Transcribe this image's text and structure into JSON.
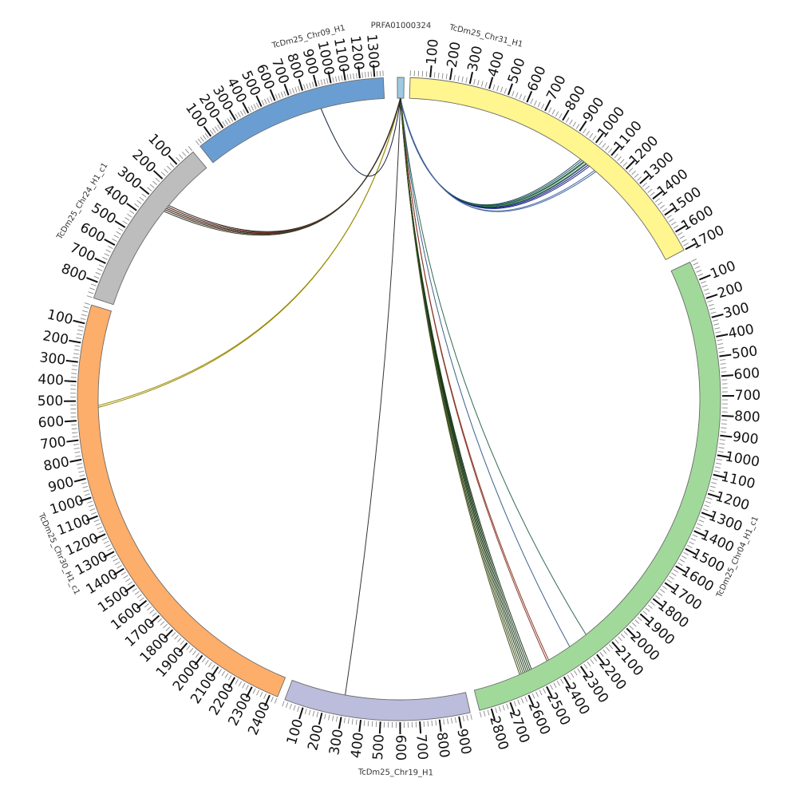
{
  "diagram": {
    "type": "circos",
    "chromosomes": [
      {
        "id": "scaffold",
        "label": "PRFA01000324",
        "length": 12,
        "color": "#9ecae1",
        "tick_step": 0,
        "show_ticks": false
      },
      {
        "id": "chr31",
        "label": "TcDm25_Chr31_H1",
        "length": 1700,
        "color": "#fff68f",
        "tick_step": 100
      },
      {
        "id": "chr04",
        "label": "TcDm25_Chr04_H1_c1",
        "length": 2860,
        "color": "#a1d99b",
        "tick_step": 100
      },
      {
        "id": "chr19",
        "label": "TcDm25_Chr19_H1",
        "length": 960,
        "color": "#bcbddc",
        "tick_step": 100
      },
      {
        "id": "chr30",
        "label": "TcDm25_Chr30_H1_c1",
        "length": 2440,
        "color": "#fdae6b",
        "tick_step": 100
      },
      {
        "id": "chr24",
        "label": "TcDm25_Chr24_H1_c1",
        "length": 880,
        "color": "#bdbdbd",
        "tick_step": 100
      },
      {
        "id": "chr09",
        "label": "TcDm25_Chr09_H1",
        "length": 1360,
        "color": "#6a9ed3",
        "tick_step": 100
      }
    ],
    "links": [
      {
        "from": "scaffold",
        "from_pos": 5,
        "to": "chr31",
        "to_pos": 1000,
        "color": "#1f4e5a",
        "count": 3
      },
      {
        "from": "scaffold",
        "from_pos": 5,
        "to": "chr31",
        "to_pos": 1020,
        "color": "#2e7d32",
        "count": 2
      },
      {
        "from": "scaffold",
        "from_pos": 5,
        "to": "chr31",
        "to_pos": 1040,
        "color": "#1a237e",
        "count": 3
      },
      {
        "from": "scaffold",
        "from_pos": 5,
        "to": "chr31",
        "to_pos": 1090,
        "color": "#4a6fa5",
        "count": 2
      },
      {
        "from": "scaffold",
        "from_pos": 6,
        "to": "chr04",
        "to_pos": 2180,
        "color": "#2f6b4f",
        "count": 1
      },
      {
        "from": "scaffold",
        "from_pos": 6,
        "to": "chr04",
        "to_pos": 2290,
        "color": "#3b5f8a",
        "count": 1
      },
      {
        "from": "scaffold",
        "from_pos": 6,
        "to": "chr04",
        "to_pos": 2430,
        "color": "#8b3a2a",
        "count": 2
      },
      {
        "from": "scaffold",
        "from_pos": 6,
        "to": "chr04",
        "to_pos": 2550,
        "color": "#1b3a1b",
        "count": 5
      },
      {
        "from": "scaffold",
        "from_pos": 6,
        "to": "chr04",
        "to_pos": 2590,
        "color": "#3e4f1c",
        "count": 3
      },
      {
        "from": "scaffold",
        "from_pos": 6,
        "to": "chr19",
        "to_pos": 300,
        "color": "#333333",
        "count": 1
      },
      {
        "from": "scaffold",
        "from_pos": 6,
        "to": "chr30",
        "to_pos": 530,
        "color": "#9a8a00",
        "count": 2
      },
      {
        "from": "scaffold",
        "from_pos": 6,
        "to": "chr24",
        "to_pos": 290,
        "color": "#222222",
        "count": 3
      },
      {
        "from": "scaffold",
        "from_pos": 6,
        "to": "chr24",
        "to_pos": 300,
        "color": "#7a2e1e",
        "count": 3
      },
      {
        "from": "scaffold",
        "from_pos": 6,
        "to": "chr24",
        "to_pos": 310,
        "color": "#3a3a2a",
        "count": 3
      },
      {
        "from": "scaffold",
        "from_pos": 6,
        "to": "chr09",
        "to_pos": 890,
        "color": "#0d1b3a",
        "count": 1
      }
    ]
  }
}
